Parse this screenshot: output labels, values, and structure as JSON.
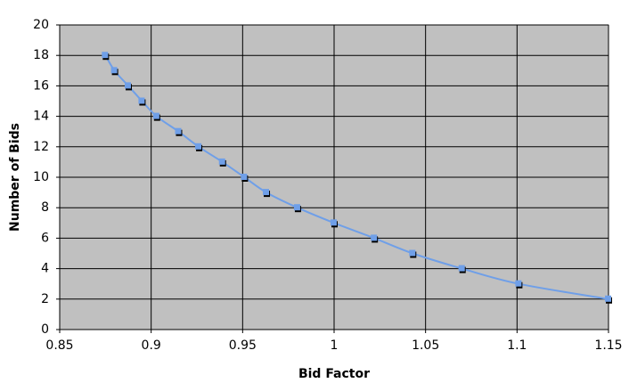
{
  "chart_data": {
    "type": "scatter",
    "x_label": "Bid Factor",
    "y_label": "Number of Bids",
    "x": [
      0.875,
      0.88,
      0.8875,
      0.895,
      0.903,
      0.915,
      0.926,
      0.939,
      0.951,
      0.963,
      0.98,
      1.0,
      1.022,
      1.043,
      1.07,
      1.101,
      1.15
    ],
    "values": [
      18,
      17,
      16,
      15,
      14,
      13,
      12,
      11,
      10,
      9,
      8,
      7,
      6,
      5,
      4,
      3,
      2
    ],
    "color": "#6f9fe8",
    "plot_background": "#c0c0c0",
    "smooth": true,
    "xlim": [
      0.85,
      1.15
    ],
    "xticks": [
      0.85,
      0.9,
      0.95,
      1,
      1.05,
      1.1,
      1.15
    ],
    "ylim": [
      0,
      20
    ],
    "yticks": [
      0,
      2,
      4,
      6,
      8,
      10,
      12,
      14,
      16,
      18,
      20
    ],
    "grid": true
  }
}
